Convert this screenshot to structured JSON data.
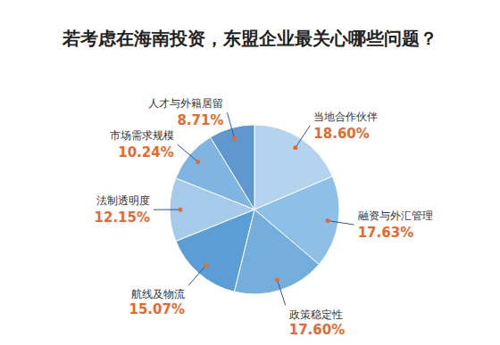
{
  "chart_data": {
    "type": "pie",
    "title": "若考虑在海南投资，东盟企业最关心哪些问题？",
    "categories": [
      "当地合作伙伴",
      "融资与外汇管理",
      "政策稳定性",
      "航线及物流",
      "法制透明度",
      "市场需求规模",
      "人才与外籍居留"
    ],
    "values": [
      18.6,
      17.63,
      17.6,
      15.07,
      12.15,
      10.24,
      8.71
    ],
    "value_labels": [
      "18.60%",
      "17.63%",
      "17.60%",
      "15.07%",
      "12.15%",
      "10.24%",
      "8.71%"
    ],
    "colors": [
      "#b3d3ee",
      "#8ebfe6",
      "#74aedd",
      "#5b9dd5",
      "#a6cbea",
      "#7fb5e0",
      "#5f98cf"
    ],
    "data_labels": true
  }
}
